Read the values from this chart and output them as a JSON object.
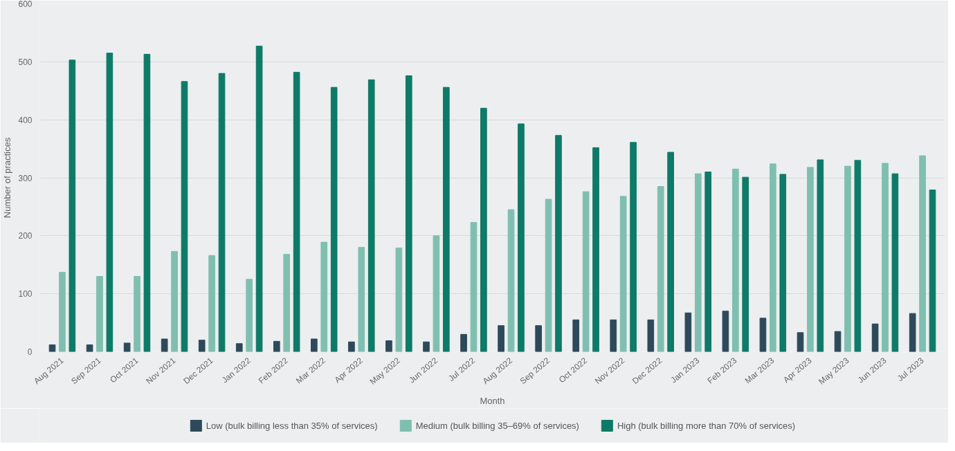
{
  "chart_data": {
    "type": "bar",
    "xlabel": "Month",
    "ylabel": "Number of practices",
    "categories": [
      "Aug 2021",
      "Sep 2021",
      "Oct 2021",
      "Nov 2021",
      "Dec 2021",
      "Jan 2022",
      "Feb 2022",
      "Mar 2022",
      "Apr 2022",
      "May 2022",
      "Jun 2022",
      "Jul 2022",
      "Aug 2022",
      "Sep 2022",
      "Oct 2022",
      "Nov 2022",
      "Dec 2022",
      "Jan 2023",
      "Feb 2023",
      "Mar 2023",
      "Apr 2023",
      "May 2023",
      "Jun 2023",
      "Jul 2023"
    ],
    "series": [
      {
        "name": "Low (bulk billing less than 35% of services)",
        "color": "#2d4a5a",
        "values": [
          12,
          12,
          15,
          22,
          20,
          14,
          18,
          22,
          17,
          19,
          17,
          30,
          45,
          45,
          55,
          55,
          55,
          67,
          70,
          58,
          33,
          35,
          48,
          66
        ]
      },
      {
        "name": "Medium (bulk billing 35–69% of services)",
        "color": "#7fbfb0",
        "values": [
          137,
          130,
          130,
          173,
          166,
          125,
          168,
          189,
          180,
          179,
          200,
          223,
          245,
          263,
          276,
          268,
          285,
          307,
          315,
          324,
          318,
          320,
          325,
          338
        ]
      },
      {
        "name": "High (bulk billing more than 70% of services)",
        "color": "#0e7a68",
        "values": [
          503,
          515,
          513,
          466,
          480,
          527,
          482,
          456,
          469,
          476,
          456,
          420,
          393,
          373,
          352,
          361,
          344,
          310,
          301,
          306,
          331,
          330,
          307,
          279
        ]
      }
    ],
    "ylim": [
      0,
      600
    ],
    "yticks": [
      0,
      100,
      200,
      300,
      400,
      500,
      600
    ],
    "grid": "y",
    "legend": "bottom"
  }
}
